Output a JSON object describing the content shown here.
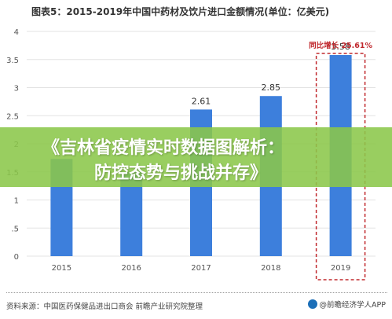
{
  "title": "图表5：2015-2019年中国中药材及饮片进口金额情况(单位：亿美元)",
  "banner": {
    "line1": "《吉林省疫情实时数据图解析：",
    "line2": "防控态势与挑战并存》"
  },
  "footer": {
    "source": "资料来源：中国医药保健品进出口商会 前瞻产业研究院整理",
    "brand": "@前瞻经济学人APP"
  },
  "colors": {
    "bar": "#3d7fdc",
    "highlight_box": "#c0282d",
    "banner": "#8bc74a"
  },
  "chart_data": {
    "type": "bar",
    "categories": [
      "2015",
      "2016",
      "2017",
      "2018",
      "2019"
    ],
    "values": [
      1.73,
      1.5,
      2.61,
      2.85,
      3.58
    ],
    "data_labels": [
      "1.73",
      "",
      "2.61",
      "2.85",
      "3.58"
    ],
    "ylim": [
      0,
      4
    ],
    "yticks": [
      "0",
      ".5",
      "1",
      "1.5",
      "2",
      "2.5",
      "3",
      "3.5",
      "4"
    ],
    "grid": true,
    "highlight": {
      "category": "2019",
      "label": "同比增长 25.61%"
    }
  }
}
